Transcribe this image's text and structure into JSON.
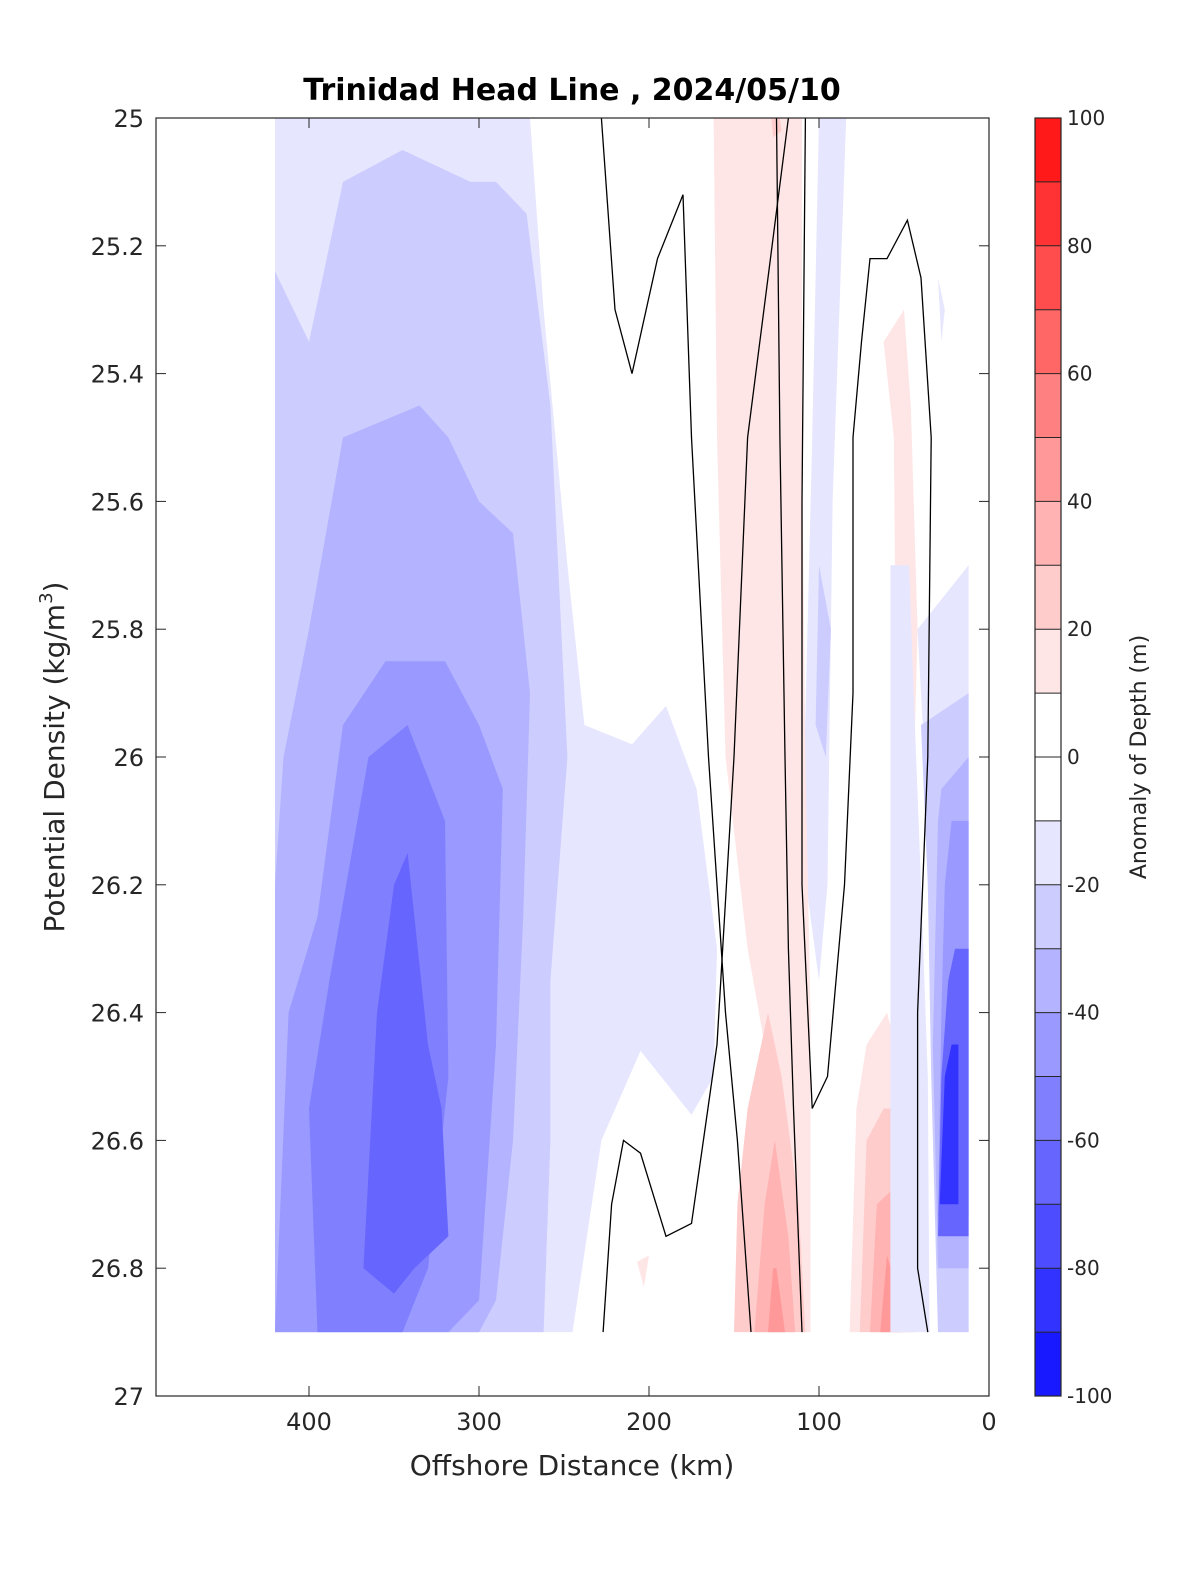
{
  "chart_data": {
    "type": "heatmap",
    "title": "Trinidad Head Line , 2024/05/10",
    "xlabel": "Offshore Distance (km)",
    "ylabel_main": "Potential Density (kg/m",
    "ylabel_sup": "3",
    "ylabel_close": ")",
    "xlim": [
      490,
      0
    ],
    "ylim": [
      25,
      27
    ],
    "y_reversed": true,
    "x_ticks": [
      400,
      300,
      200,
      100,
      0
    ],
    "x_tick_labels": [
      "400",
      "300",
      "200",
      "100",
      "0"
    ],
    "y_ticks": [
      25,
      25.2,
      25.4,
      25.6,
      25.8,
      26,
      26.2,
      26.4,
      26.6,
      26.8,
      27
    ],
    "y_tick_labels": [
      "25",
      "25.2",
      "25.4",
      "25.6",
      "25.8",
      "26",
      "26.2",
      "26.4",
      "26.6",
      "26.8",
      "27"
    ],
    "colorbar": {
      "label": "Anomaly of Depth (m)",
      "range": [
        -100,
        100
      ],
      "levels_step": 10,
      "tick_values": [
        100,
        80,
        60,
        40,
        20,
        0,
        -20,
        -40,
        -60,
        -80,
        -100
      ],
      "tick_labels": [
        "100",
        "80",
        "60",
        "40",
        "20",
        "0",
        "-20",
        "-40",
        "-60",
        "-80",
        "-100"
      ],
      "colormap": "blue-white-red"
    },
    "fill_regions": [
      {
        "level": -10,
        "points": [
          [
            420,
            25
          ],
          [
            270,
            25
          ],
          [
            262,
            25.3
          ],
          [
            248,
            25.7
          ],
          [
            238,
            25.95
          ],
          [
            210,
            25.98
          ],
          [
            190,
            25.92
          ],
          [
            172,
            26.05
          ],
          [
            160,
            26.3
          ],
          [
            162,
            26.5
          ],
          [
            175,
            26.56
          ],
          [
            205,
            26.46
          ],
          [
            228,
            26.6
          ],
          [
            245,
            26.9
          ],
          [
            420,
            26.9
          ]
        ]
      },
      {
        "level": -20,
        "points": [
          [
            420,
            25.24
          ],
          [
            400,
            25.35
          ],
          [
            380,
            25.1
          ],
          [
            345,
            25.05
          ],
          [
            305,
            25.1
          ],
          [
            290,
            25.1
          ],
          [
            272,
            25.15
          ],
          [
            258,
            25.45
          ],
          [
            248,
            26
          ],
          [
            258,
            26.35
          ],
          [
            258,
            26.6
          ],
          [
            262,
            26.9
          ],
          [
            420,
            26.9
          ]
        ]
      },
      {
        "level": -30,
        "points": [
          [
            420,
            26.2
          ],
          [
            415,
            26
          ],
          [
            400,
            25.8
          ],
          [
            380,
            25.5
          ],
          [
            335,
            25.45
          ],
          [
            318,
            25.5
          ],
          [
            300,
            25.6
          ],
          [
            280,
            25.65
          ],
          [
            270,
            25.9
          ],
          [
            274,
            26.25
          ],
          [
            280,
            26.6
          ],
          [
            290,
            26.85
          ],
          [
            300,
            26.9
          ],
          [
            420,
            26.9
          ]
        ]
      },
      {
        "level": -40,
        "points": [
          [
            420,
            26.9
          ],
          [
            412,
            26.4
          ],
          [
            395,
            26.25
          ],
          [
            380,
            25.95
          ],
          [
            355,
            25.85
          ],
          [
            320,
            25.85
          ],
          [
            300,
            25.95
          ],
          [
            286,
            26.05
          ],
          [
            290,
            26.45
          ],
          [
            300,
            26.85
          ],
          [
            318,
            26.9
          ]
        ]
      },
      {
        "level": -50,
        "points": [
          [
            395,
            26.9
          ],
          [
            400,
            26.55
          ],
          [
            388,
            26.35
          ],
          [
            365,
            26.0
          ],
          [
            342,
            25.95
          ],
          [
            320,
            26.1
          ],
          [
            318,
            26.5
          ],
          [
            330,
            26.8
          ],
          [
            345,
            26.9
          ]
        ]
      },
      {
        "level": -60,
        "points": [
          [
            368,
            26.8
          ],
          [
            360,
            26.4
          ],
          [
            350,
            26.2
          ],
          [
            342,
            26.15
          ],
          [
            330,
            26.45
          ],
          [
            322,
            26.55
          ],
          [
            318,
            26.75
          ],
          [
            338,
            26.8
          ],
          [
            350,
            26.84
          ]
        ]
      },
      {
        "level": -10,
        "points": [
          [
            84,
            25
          ],
          [
            92,
            25.6
          ],
          [
            95,
            26.2
          ],
          [
            100,
            26.35
          ],
          [
            110,
            26.15
          ],
          [
            104,
            25.5
          ],
          [
            100,
            25
          ]
        ]
      },
      {
        "level": -20,
        "points": [
          [
            93,
            25.8
          ],
          [
            96,
            26.0
          ],
          [
            102,
            25.95
          ],
          [
            100,
            25.7
          ]
        ]
      },
      {
        "level": 10,
        "points": [
          [
            162,
            25
          ],
          [
            160,
            25.5
          ],
          [
            155,
            26
          ],
          [
            142,
            26.3
          ],
          [
            132,
            26.45
          ],
          [
            136,
            26.9
          ],
          [
            105,
            26.9
          ],
          [
            105,
            26.4
          ],
          [
            108,
            26.0
          ],
          [
            110,
            25.5
          ],
          [
            110,
            25
          ]
        ]
      },
      {
        "level": 20,
        "points": [
          [
            128,
            25
          ],
          [
            123,
            25
          ],
          [
            122,
            25.02
          ],
          [
            127,
            25.03
          ]
        ]
      },
      {
        "level": 20,
        "points": [
          [
            150,
            26.9
          ],
          [
            148,
            26.7
          ],
          [
            142,
            26.55
          ],
          [
            130,
            26.4
          ],
          [
            122,
            26.5
          ],
          [
            112,
            26.7
          ],
          [
            108,
            26.9
          ]
        ]
      },
      {
        "level": 30,
        "points": [
          [
            138,
            26.9
          ],
          [
            132,
            26.7
          ],
          [
            126,
            26.6
          ],
          [
            118,
            26.75
          ],
          [
            114,
            26.9
          ]
        ]
      },
      {
        "level": 40,
        "points": [
          [
            130,
            26.9
          ],
          [
            127,
            26.8
          ],
          [
            125,
            26.8
          ],
          [
            120,
            26.9
          ]
        ]
      },
      {
        "level": 10,
        "points": [
          [
            62,
            25.35
          ],
          [
            56,
            25.5
          ],
          [
            55,
            25.8
          ],
          [
            52,
            26.05
          ],
          [
            45,
            26.1
          ],
          [
            42,
            25.8
          ],
          [
            46,
            25.45
          ],
          [
            50,
            25.3
          ]
        ]
      },
      {
        "level": 10,
        "points": [
          [
            82,
            26.9
          ],
          [
            78,
            26.55
          ],
          [
            72,
            26.45
          ],
          [
            60,
            26.4
          ],
          [
            50,
            26.5
          ],
          [
            46,
            26.55
          ],
          [
            42,
            26.9
          ]
        ]
      },
      {
        "level": 20,
        "points": [
          [
            76,
            26.9
          ],
          [
            72,
            26.6
          ],
          [
            62,
            26.55
          ],
          [
            52,
            26.55
          ],
          [
            48,
            26.7
          ],
          [
            44,
            26.9
          ]
        ]
      },
      {
        "level": 30,
        "points": [
          [
            70,
            26.9
          ],
          [
            66,
            26.7
          ],
          [
            58,
            26.68
          ],
          [
            50,
            26.8
          ],
          [
            48,
            26.9
          ]
        ]
      },
      {
        "level": 40,
        "points": [
          [
            64,
            26.9
          ],
          [
            60,
            26.78
          ],
          [
            52,
            26.85
          ],
          [
            52,
            26.9
          ]
        ]
      },
      {
        "level": 10,
        "points": [
          [
            207,
            26.79
          ],
          [
            200,
            26.78
          ],
          [
            203,
            26.83
          ]
        ]
      },
      {
        "level": -10,
        "points": [
          [
            35,
            26.9
          ],
          [
            36,
            26.5
          ],
          [
            40,
            26.2
          ],
          [
            45,
            25.85
          ],
          [
            47,
            25.7
          ],
          [
            58,
            25.7
          ],
          [
            58,
            26.9
          ]
        ]
      },
      {
        "level": -10,
        "points": [
          [
            30,
            25.25
          ],
          [
            26,
            25.3
          ],
          [
            28,
            25.35
          ]
        ]
      },
      {
        "level": -10,
        "points": [
          [
            30,
            26.9
          ],
          [
            34,
            26.3
          ],
          [
            38,
            26.0
          ],
          [
            42,
            25.8
          ],
          [
            12,
            25.7
          ],
          [
            12,
            26.9
          ]
        ]
      },
      {
        "level": -20,
        "points": [
          [
            30,
            26.9
          ],
          [
            34,
            26.5
          ],
          [
            36,
            26.2
          ],
          [
            40,
            25.95
          ],
          [
            12,
            25.9
          ],
          [
            12,
            26.9
          ]
        ]
      },
      {
        "level": -30,
        "points": [
          [
            30,
            26.8
          ],
          [
            33,
            26.45
          ],
          [
            30,
            26.1
          ],
          [
            28,
            26.05
          ],
          [
            12,
            26.0
          ],
          [
            12,
            26.8
          ]
        ]
      },
      {
        "level": -40,
        "points": [
          [
            30,
            26.72
          ],
          [
            28,
            26.4
          ],
          [
            26,
            26.2
          ],
          [
            22,
            26.1
          ],
          [
            12,
            26.1
          ],
          [
            12,
            26.72
          ]
        ]
      },
      {
        "level": -60,
        "points": [
          [
            30,
            26.75
          ],
          [
            28,
            26.5
          ],
          [
            24,
            26.35
          ],
          [
            20,
            26.3
          ],
          [
            12,
            26.3
          ],
          [
            12,
            26.75
          ]
        ]
      },
      {
        "level": -80,
        "points": [
          [
            29,
            26.7
          ],
          [
            26,
            26.5
          ],
          [
            22,
            26.45
          ],
          [
            18,
            26.45
          ],
          [
            18,
            26.7
          ]
        ]
      }
    ],
    "zero_contours": [
      {
        "points": [
          [
            228,
            25
          ],
          [
            220,
            25.3
          ],
          [
            210,
            25.4
          ],
          [
            195,
            25.22
          ],
          [
            180,
            25.12
          ],
          [
            175,
            25.5
          ],
          [
            165,
            26.0
          ],
          [
            155,
            26.4
          ],
          [
            148,
            26.6
          ],
          [
            140,
            26.9
          ]
        ]
      },
      {
        "points": [
          [
            227,
            26.9
          ],
          [
            222,
            26.7
          ],
          [
            215,
            26.6
          ],
          [
            205,
            26.62
          ],
          [
            190,
            26.75
          ],
          [
            175,
            26.73
          ],
          [
            168,
            26.6
          ],
          [
            160,
            26.45
          ],
          [
            150,
            26.0
          ],
          [
            142,
            25.5
          ],
          [
            118,
            25.0
          ]
        ]
      },
      {
        "points": [
          [
            108,
            25
          ],
          [
            110,
            25.6
          ],
          [
            110,
            26.2
          ],
          [
            104,
            26.55
          ],
          [
            95,
            26.5
          ],
          [
            85,
            26.2
          ],
          [
            80,
            25.9
          ],
          [
            80,
            25.5
          ],
          [
            75,
            25.35
          ],
          [
            70,
            25.22
          ],
          [
            60,
            25.22
          ],
          [
            48,
            25.16
          ],
          [
            40,
            25.25
          ],
          [
            34,
            25.5
          ],
          [
            36,
            26.0
          ],
          [
            42,
            26.4
          ],
          [
            42,
            26.8
          ],
          [
            36,
            26.9
          ]
        ]
      },
      {
        "points": [
          [
            125,
            25
          ],
          [
            123,
            25.5
          ],
          [
            120,
            26.0
          ],
          [
            118,
            26.3
          ],
          [
            115,
            26.55
          ],
          [
            110,
            26.9
          ]
        ]
      }
    ]
  }
}
